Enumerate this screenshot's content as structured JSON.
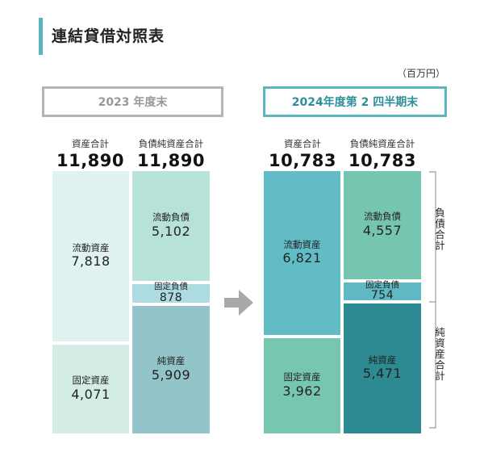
{
  "title": "連結貸借対照表",
  "unit": "（百万円）",
  "chart_data": {
    "type": "bar",
    "title": "連結貸借対照表",
    "unit": "（百万円）",
    "periods": [
      {
        "label": "2023 年度末",
        "assets": {
          "total_label": "資産合計",
          "total": "11,890",
          "items": [
            {
              "label": "流動資産",
              "value": "7,818",
              "amount": 7818,
              "color": "#e0f3f1"
            },
            {
              "label": "固定資産",
              "value": "4,071",
              "amount": 4071,
              "color": "#d3ece5"
            }
          ]
        },
        "liabilities_equity": {
          "total_label": "負債純資産合計",
          "total": "11,890",
          "items": [
            {
              "label": "流動負債",
              "value": "5,102",
              "amount": 5102,
              "color": "#b7e2d8"
            },
            {
              "label": "固定負債",
              "value": "878",
              "amount": 878,
              "color": "#acdbe1"
            },
            {
              "label": "純資産",
              "value": "5,909",
              "amount": 5909,
              "color": "#92c4c9"
            }
          ]
        }
      },
      {
        "label": "2024年度第 2 四半期末",
        "assets": {
          "total_label": "資産合計",
          "total": "10,783",
          "items": [
            {
              "label": "流動資産",
              "value": "6,821",
              "amount": 6821,
              "color": "#62bcc5"
            },
            {
              "label": "固定資産",
              "value": "3,962",
              "amount": 3962,
              "color": "#77c6b0"
            }
          ]
        },
        "liabilities_equity": {
          "total_label": "負債純資産合計",
          "total": "10,783",
          "items": [
            {
              "label": "流動負債",
              "value": "4,557",
              "amount": 4557,
              "color": "#76c5b1"
            },
            {
              "label": "固定負債",
              "value": "754",
              "amount": 754,
              "color": "#5eb9c4"
            },
            {
              "label": "純資産",
              "value": "5,471",
              "amount": 5471,
              "color": "#2d8a92"
            }
          ]
        }
      }
    ],
    "brace_labels": {
      "liabilities": "負債合計",
      "equity": "純資産合計"
    }
  }
}
